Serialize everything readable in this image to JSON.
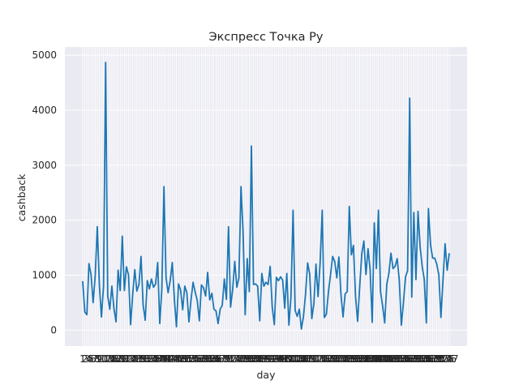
{
  "chart_data": {
    "type": "line",
    "title": "Экспресс Точка Ру",
    "xlabel": "day",
    "ylabel": "cashback",
    "ylim": [
      -290,
      5150
    ],
    "yticks": [
      0,
      1000,
      2000,
      3000,
      4000,
      5000
    ],
    "grid": true,
    "style": "seaborn-darkgrid",
    "colors": {
      "plot_bg": "#eaeaf2",
      "grid": "#ffffff",
      "line": "#1f77b4"
    },
    "series": [
      {
        "values": [
          890,
          330,
          280,
          1210,
          1010,
          500,
          990,
          1880,
          820,
          240,
          800,
          4870,
          620,
          380,
          800,
          390,
          150,
          1090,
          720,
          1710,
          720,
          1150,
          1000,
          100,
          650,
          1100,
          710,
          830,
          1340,
          460,
          180,
          900,
          750,
          930,
          780,
          840,
          1230,
          120,
          760,
          2610,
          960,
          680,
          900,
          1230,
          570,
          60,
          840,
          730,
          370,
          800,
          680,
          150,
          550,
          870,
          690,
          540,
          170,
          820,
          770,
          620,
          1050,
          550,
          670,
          380,
          350,
          120,
          380,
          450,
          930,
          560,
          1880,
          420,
          740,
          1250,
          780,
          950,
          2610,
          1780,
          280,
          1300,
          700,
          3350,
          830,
          840,
          800,
          170,
          1030,
          800,
          870,
          830,
          1160,
          420,
          100,
          960,
          900,
          970,
          910,
          400,
          1030,
          90,
          610,
          2180,
          360,
          250,
          380,
          20,
          250,
          660,
          1220,
          1020,
          210,
          480,
          1200,
          610,
          1230,
          2180,
          230,
          290,
          700,
          1010,
          1340,
          1250,
          950,
          1330,
          650,
          240,
          660,
          700,
          2250,
          1370,
          1540,
          610,
          160,
          790,
          1390,
          1620,
          1010,
          1480,
          1100,
          140,
          1950,
          1120,
          2180,
          700,
          440,
          130,
          830,
          1030,
          1400,
          1120,
          1160,
          1300,
          910,
          90,
          500,
          970,
          1080,
          4220,
          600,
          2140,
          920,
          2160,
          1520,
          1160,
          920,
          130,
          2210,
          1560,
          1310,
          1310,
          1200,
          1000,
          230,
          920,
          1570,
          1090,
          1400
        ]
      }
    ]
  }
}
